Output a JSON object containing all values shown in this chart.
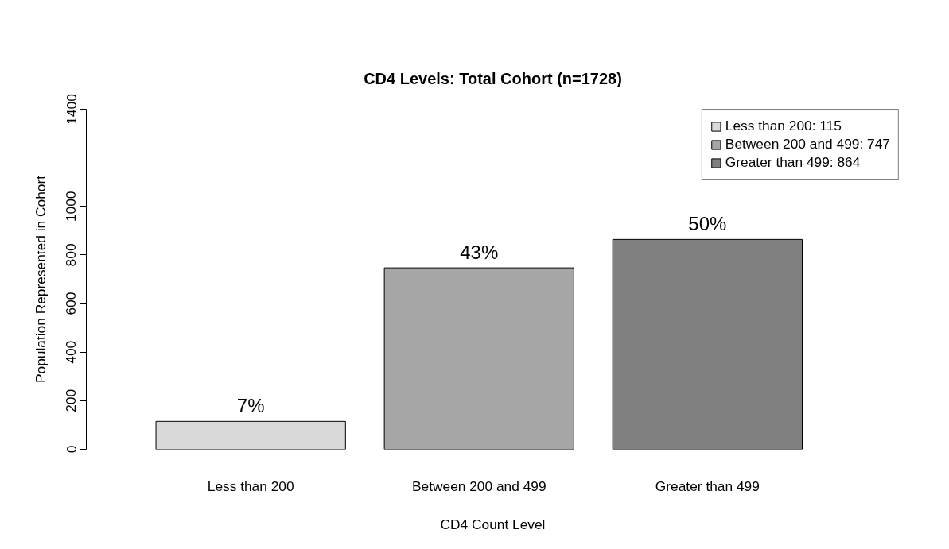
{
  "chart_data": {
    "type": "bar",
    "title": "CD4 Levels: Total Cohort (n=1728)",
    "xlabel": "CD4 Count Level",
    "ylabel": "Population Represented in Cohort",
    "categories": [
      "Less than 200",
      "Between 200 and 499",
      "Greater than 499"
    ],
    "series": [
      {
        "name": "Less than 200: 115",
        "color": "#d9d9d9",
        "values": [
          115,
          null,
          null
        ]
      },
      {
        "name": "Between 200 and 499: 747",
        "color": "#a6a6a6",
        "values": [
          null,
          747,
          null
        ]
      },
      {
        "name": "Greater than 499: 864",
        "color": "#808080",
        "values": [
          null,
          null,
          864
        ]
      }
    ],
    "annotations": [
      {
        "text": "7%",
        "x": "Less than 200",
        "y": 115
      },
      {
        "text": "43%",
        "x": "Between 200 and 499",
        "y": 747
      },
      {
        "text": "50%",
        "x": "Greater than 499",
        "y": 864
      }
    ],
    "ylim": [
      0,
      1400
    ],
    "yticks": [
      0,
      200,
      400,
      600,
      800,
      1000,
      1400
    ],
    "grid": false,
    "legend": "top right"
  }
}
